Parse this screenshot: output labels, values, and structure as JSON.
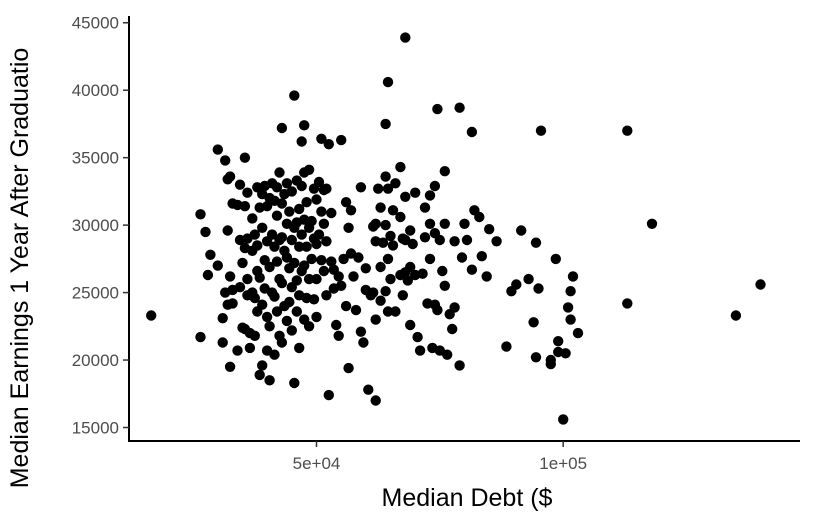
{
  "chart_data": {
    "type": "scatter",
    "title": "",
    "xlabel": "Median Debt ($",
    "ylabel": "Median Earnings 1 Year After Graduatio",
    "xlim": [
      12000,
      148000
    ],
    "ylim": [
      14000,
      45500
    ],
    "x_ticks": [
      {
        "value": 50000,
        "label": "5e+04"
      },
      {
        "value": 100000,
        "label": "1e+05"
      }
    ],
    "y_ticks": [
      {
        "value": 15000,
        "label": "15000"
      },
      {
        "value": 20000,
        "label": "20000"
      },
      {
        "value": 25000,
        "label": "25000"
      },
      {
        "value": 30000,
        "label": "30000"
      },
      {
        "value": 35000,
        "label": "35000"
      },
      {
        "value": 40000,
        "label": "40000"
      },
      {
        "value": 45000,
        "label": "45000"
      }
    ],
    "grid": false,
    "legend": "none",
    "point_color": "#000000",
    "points": [
      [
        16500,
        23300
      ],
      [
        26500,
        30800
      ],
      [
        26500,
        21700
      ],
      [
        27500,
        29500
      ],
      [
        28000,
        26300
      ],
      [
        28500,
        27800
      ],
      [
        30000,
        35600
      ],
      [
        30000,
        27000
      ],
      [
        31000,
        23100
      ],
      [
        31000,
        21300
      ],
      [
        31500,
        34800
      ],
      [
        31500,
        25000
      ],
      [
        32000,
        33400
      ],
      [
        32000,
        29600
      ],
      [
        32000,
        24100
      ],
      [
        32500,
        33600
      ],
      [
        32500,
        26200
      ],
      [
        32500,
        19500
      ],
      [
        33000,
        31600
      ],
      [
        33000,
        25200
      ],
      [
        33000,
        24200
      ],
      [
        34000,
        31500
      ],
      [
        34000,
        20700
      ],
      [
        34500,
        33000
      ],
      [
        34500,
        28900
      ],
      [
        34500,
        25400
      ],
      [
        35000,
        27200
      ],
      [
        35000,
        22400
      ],
      [
        35500,
        35000
      ],
      [
        35500,
        31400
      ],
      [
        35500,
        28300
      ],
      [
        35500,
        22300
      ],
      [
        36000,
        32400
      ],
      [
        36000,
        29000
      ],
      [
        36000,
        26000
      ],
      [
        36000,
        24800
      ],
      [
        36500,
        22000
      ],
      [
        36500,
        20900
      ],
      [
        37000,
        30500
      ],
      [
        37000,
        28100
      ],
      [
        37000,
        25000
      ],
      [
        37500,
        29300
      ],
      [
        37500,
        24600
      ],
      [
        37500,
        21800
      ],
      [
        38000,
        32800
      ],
      [
        38000,
        28500
      ],
      [
        38000,
        26600
      ],
      [
        38000,
        23600
      ],
      [
        38500,
        31300
      ],
      [
        38500,
        26100
      ],
      [
        38500,
        18900
      ],
      [
        39000,
        32300
      ],
      [
        39000,
        29800
      ],
      [
        39000,
        24100
      ],
      [
        39000,
        19600
      ],
      [
        39500,
        32900
      ],
      [
        39500,
        27400
      ],
      [
        39500,
        25300
      ],
      [
        40000,
        31400
      ],
      [
        40000,
        28800
      ],
      [
        40000,
        23200
      ],
      [
        40000,
        20700
      ],
      [
        40500,
        32000
      ],
      [
        40500,
        26900
      ],
      [
        40500,
        22500
      ],
      [
        40500,
        18500
      ],
      [
        41000,
        33100
      ],
      [
        41000,
        29300
      ],
      [
        41000,
        25000
      ],
      [
        41500,
        31800
      ],
      [
        41500,
        28400
      ],
      [
        41500,
        24700
      ],
      [
        41500,
        20400
      ],
      [
        42000,
        32800
      ],
      [
        42000,
        30700
      ],
      [
        42000,
        27300
      ],
      [
        42000,
        23600
      ],
      [
        42500,
        33900
      ],
      [
        42500,
        28900
      ],
      [
        42500,
        26000
      ],
      [
        42500,
        21800
      ],
      [
        43000,
        37200
      ],
      [
        43000,
        31600
      ],
      [
        43000,
        29100
      ],
      [
        43000,
        25700
      ],
      [
        43000,
        21300
      ],
      [
        43500,
        32300
      ],
      [
        43500,
        28100
      ],
      [
        43500,
        24000
      ],
      [
        44000,
        33100
      ],
      [
        44000,
        30100
      ],
      [
        44000,
        27600
      ],
      [
        44000,
        22900
      ],
      [
        44500,
        31000
      ],
      [
        44500,
        26800
      ],
      [
        44500,
        24300
      ],
      [
        45000,
        32500
      ],
      [
        45000,
        28900
      ],
      [
        45000,
        25400
      ],
      [
        45000,
        22200
      ],
      [
        45500,
        39600
      ],
      [
        45500,
        29800
      ],
      [
        45500,
        27200
      ],
      [
        45500,
        18300
      ],
      [
        46000,
        33300
      ],
      [
        46000,
        30200
      ],
      [
        46000,
        25900
      ],
      [
        46000,
        23600
      ],
      [
        46500,
        31200
      ],
      [
        46500,
        28400
      ],
      [
        46500,
        24800
      ],
      [
        46500,
        20900
      ],
      [
        47000,
        36200
      ],
      [
        47000,
        32900
      ],
      [
        47000,
        29300
      ],
      [
        47000,
        26600
      ],
      [
        47500,
        37400
      ],
      [
        47500,
        33900
      ],
      [
        47500,
        30400
      ],
      [
        47500,
        27000
      ],
      [
        47500,
        23000
      ],
      [
        48000,
        31700
      ],
      [
        48000,
        28400
      ],
      [
        48000,
        24600
      ],
      [
        48500,
        34100
      ],
      [
        48500,
        29800
      ],
      [
        48500,
        26000
      ],
      [
        48500,
        22500
      ],
      [
        49000,
        30300
      ],
      [
        49000,
        27500
      ],
      [
        49500,
        32700
      ],
      [
        49500,
        29000
      ],
      [
        49500,
        24500
      ],
      [
        50000,
        31900
      ],
      [
        50000,
        28600
      ],
      [
        50000,
        26000
      ],
      [
        50000,
        23200
      ],
      [
        50500,
        33200
      ],
      [
        50500,
        29300
      ],
      [
        51000,
        36400
      ],
      [
        51000,
        31000
      ],
      [
        51000,
        27400
      ],
      [
        51500,
        32600
      ],
      [
        51500,
        30100
      ],
      [
        51500,
        26600
      ],
      [
        52000,
        32700
      ],
      [
        52000,
        28800
      ],
      [
        52000,
        24800
      ],
      [
        52500,
        36000
      ],
      [
        52500,
        17400
      ],
      [
        53000,
        30900
      ],
      [
        53000,
        27300
      ],
      [
        53500,
        26700
      ],
      [
        53500,
        25300
      ],
      [
        54000,
        22600
      ],
      [
        54500,
        26200
      ],
      [
        54500,
        21800
      ],
      [
        55000,
        36300
      ],
      [
        55000,
        25500
      ],
      [
        55500,
        27500
      ],
      [
        56000,
        31700
      ],
      [
        56000,
        24000
      ],
      [
        56500,
        29800
      ],
      [
        56500,
        19400
      ],
      [
        57000,
        31100
      ],
      [
        57000,
        27900
      ],
      [
        57500,
        26200
      ],
      [
        58000,
        23700
      ],
      [
        58500,
        27600
      ],
      [
        59000,
        32800
      ],
      [
        59000,
        22100
      ],
      [
        59500,
        21300
      ],
      [
        60000,
        26800
      ],
      [
        60000,
        25200
      ],
      [
        60500,
        17800
      ],
      [
        61000,
        24800
      ],
      [
        61500,
        29900
      ],
      [
        61500,
        25000
      ],
      [
        62000,
        30100
      ],
      [
        62000,
        28800
      ],
      [
        62000,
        23000
      ],
      [
        62000,
        17000
      ],
      [
        62500,
        32700
      ],
      [
        63000,
        31300
      ],
      [
        63000,
        26900
      ],
      [
        63000,
        24400
      ],
      [
        63500,
        28700
      ],
      [
        64000,
        37500
      ],
      [
        64000,
        33600
      ],
      [
        64000,
        30000
      ],
      [
        64000,
        25100
      ],
      [
        64500,
        40600
      ],
      [
        64500,
        32700
      ],
      [
        64500,
        27500
      ],
      [
        64500,
        23600
      ],
      [
        65000,
        29200
      ],
      [
        65000,
        26000
      ],
      [
        65500,
        31100
      ],
      [
        65500,
        28500
      ],
      [
        66000,
        33100
      ],
      [
        66000,
        23600
      ],
      [
        67000,
        34300
      ],
      [
        67000,
        30600
      ],
      [
        67000,
        26300
      ],
      [
        67500,
        29000
      ],
      [
        67500,
        24800
      ],
      [
        68000,
        43900
      ],
      [
        68000,
        32100
      ],
      [
        68000,
        28900
      ],
      [
        68000,
        26500
      ],
      [
        68500,
        25900
      ],
      [
        69000,
        29600
      ],
      [
        69000,
        26900
      ],
      [
        69000,
        22600
      ],
      [
        69500,
        28600
      ],
      [
        70000,
        32400
      ],
      [
        70000,
        26300
      ],
      [
        70500,
        21700
      ],
      [
        71000,
        20700
      ],
      [
        71500,
        26400
      ],
      [
        72000,
        31300
      ],
      [
        72000,
        29100
      ],
      [
        72500,
        24200
      ],
      [
        73000,
        32200
      ],
      [
        73000,
        30100
      ],
      [
        73000,
        27500
      ],
      [
        73500,
        20900
      ],
      [
        74000,
        32900
      ],
      [
        74000,
        29400
      ],
      [
        74000,
        24100
      ],
      [
        74500,
        38600
      ],
      [
        74500,
        23700
      ],
      [
        75000,
        28900
      ],
      [
        75000,
        20700
      ],
      [
        75500,
        26600
      ],
      [
        76000,
        34000
      ],
      [
        76000,
        30100
      ],
      [
        76000,
        25500
      ],
      [
        76500,
        20400
      ],
      [
        77000,
        23400
      ],
      [
        77500,
        22300
      ],
      [
        78000,
        28800
      ],
      [
        78000,
        23900
      ],
      [
        79000,
        38700
      ],
      [
        79000,
        19600
      ],
      [
        79500,
        27600
      ],
      [
        80000,
        30100
      ],
      [
        80500,
        28900
      ],
      [
        81500,
        36900
      ],
      [
        81500,
        26700
      ],
      [
        82000,
        31100
      ],
      [
        83000,
        30600
      ],
      [
        83500,
        27700
      ],
      [
        84500,
        26200
      ],
      [
        85000,
        29700
      ],
      [
        86500,
        28800
      ],
      [
        88500,
        21000
      ],
      [
        89500,
        25100
      ],
      [
        90500,
        25600
      ],
      [
        91500,
        29600
      ],
      [
        93000,
        26000
      ],
      [
        94000,
        22800
      ],
      [
        94500,
        20200
      ],
      [
        94500,
        28700
      ],
      [
        95000,
        25300
      ],
      [
        95500,
        37000
      ],
      [
        97500,
        19700
      ],
      [
        97500,
        20000
      ],
      [
        98500,
        27500
      ],
      [
        99000,
        21400
      ],
      [
        99000,
        20600
      ],
      [
        100000,
        15600
      ],
      [
        100500,
        20500
      ],
      [
        101000,
        23900
      ],
      [
        101500,
        25100
      ],
      [
        101500,
        23000
      ],
      [
        102000,
        26200
      ],
      [
        103000,
        22000
      ],
      [
        113000,
        24200
      ],
      [
        113000,
        37000
      ],
      [
        118000,
        30100
      ],
      [
        135000,
        23300
      ],
      [
        140000,
        25600
      ]
    ]
  }
}
